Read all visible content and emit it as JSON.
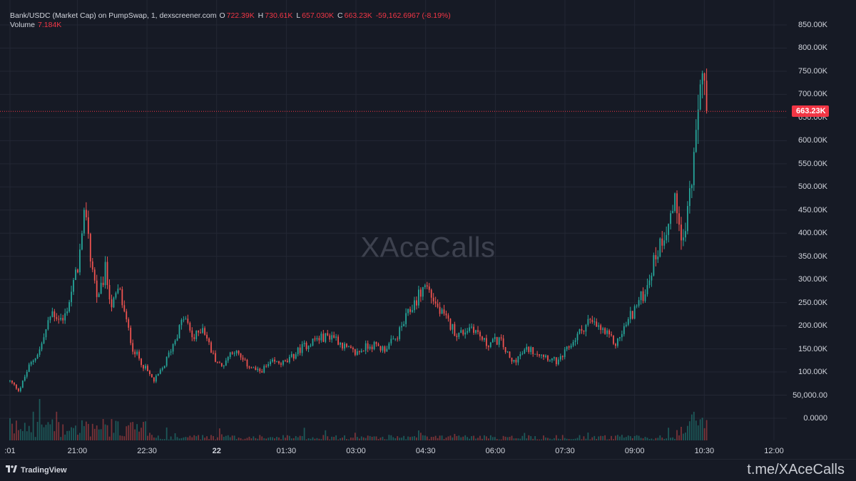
{
  "legend": {
    "symbol": "Bank/USDC (Market Cap) on PumpSwap, 1, dexscreener.com",
    "open_key": "O",
    "open": "722.39K",
    "high_key": "H",
    "high": "730.61K",
    "low_key": "L",
    "low": "657.030K",
    "close_key": "C",
    "close": "663.23K",
    "change": "-59,162.6967 (-8.19%)",
    "volume_key": "Volume",
    "volume": "7.184K"
  },
  "price_tag": "663.23K",
  "watermark": "XAceCalls",
  "brand": "TradingView",
  "corner_link": "t.me/XAceCalls",
  "colors": {
    "background": "#161a25",
    "grid": "#232734",
    "up": "#26a69a",
    "down": "#ef5350",
    "price_line": "#f23645"
  },
  "chart_data": {
    "type": "candlestick",
    "title": "Bank/USDC (Market Cap) on PumpSwap, 1, dexscreener.com",
    "y_ticks": [
      "850.00K",
      "800.00K",
      "750.00K",
      "700.00K",
      "650.00K",
      "600.00K",
      "550.00K",
      "500.00K",
      "450.00K",
      "400.00K",
      "350.00K",
      "300.00K",
      "250.00K",
      "200.00K",
      "150.00K",
      "100.00K",
      "50,000.00",
      "0.0000"
    ],
    "y_tick_values": [
      850000,
      800000,
      750000,
      700000,
      650000,
      600000,
      550000,
      500000,
      450000,
      400000,
      350000,
      300000,
      250000,
      200000,
      150000,
      100000,
      50000,
      0
    ],
    "x_ticks": [
      {
        "label": ":01",
        "hour": 19.55,
        "bold": false
      },
      {
        "label": "21:00",
        "hour": 21.0,
        "bold": false
      },
      {
        "label": "22:30",
        "hour": 22.5,
        "bold": false
      },
      {
        "label": "22",
        "hour": 24.0,
        "bold": true
      },
      {
        "label": "01:30",
        "hour": 25.5,
        "bold": false
      },
      {
        "label": "03:00",
        "hour": 27.0,
        "bold": false
      },
      {
        "label": "04:30",
        "hour": 28.5,
        "bold": false
      },
      {
        "label": "06:00",
        "hour": 30.0,
        "bold": false
      },
      {
        "label": "07:30",
        "hour": 31.5,
        "bold": false
      },
      {
        "label": "09:00",
        "hour": 33.0,
        "bold": false
      },
      {
        "label": "10:30",
        "hour": 34.5,
        "bold": false
      },
      {
        "label": "12:00",
        "hour": 36.0,
        "bold": false
      }
    ],
    "ylim": [
      -5000,
      870000
    ],
    "last_price": 663230,
    "anchors": [
      [
        19.55,
        80000
      ],
      [
        19.75,
        60000
      ],
      [
        19.95,
        110000
      ],
      [
        20.2,
        150000
      ],
      [
        20.45,
        230000
      ],
      [
        20.7,
        210000
      ],
      [
        20.95,
        300000
      ],
      [
        21.1,
        380000
      ],
      [
        21.18,
        460000
      ],
      [
        21.28,
        350000
      ],
      [
        21.45,
        250000
      ],
      [
        21.6,
        320000
      ],
      [
        21.75,
        240000
      ],
      [
        21.9,
        280000
      ],
      [
        22.05,
        210000
      ],
      [
        22.2,
        150000
      ],
      [
        22.45,
        110000
      ],
      [
        22.65,
        80000
      ],
      [
        22.85,
        110000
      ],
      [
        23.1,
        170000
      ],
      [
        23.3,
        220000
      ],
      [
        23.5,
        170000
      ],
      [
        23.7,
        200000
      ],
      [
        23.9,
        140000
      ],
      [
        24.1,
        110000
      ],
      [
        24.35,
        150000
      ],
      [
        24.6,
        120000
      ],
      [
        24.9,
        100000
      ],
      [
        25.2,
        120000
      ],
      [
        25.5,
        120000
      ],
      [
        25.8,
        150000
      ],
      [
        26.1,
        170000
      ],
      [
        26.5,
        180000
      ],
      [
        26.8,
        150000
      ],
      [
        27.0,
        140000
      ],
      [
        27.3,
        160000
      ],
      [
        27.6,
        150000
      ],
      [
        27.85,
        170000
      ],
      [
        28.2,
        240000
      ],
      [
        28.5,
        290000
      ],
      [
        28.8,
        230000
      ],
      [
        29.2,
        180000
      ],
      [
        29.5,
        200000
      ],
      [
        29.8,
        160000
      ],
      [
        30.1,
        170000
      ],
      [
        30.35,
        120000
      ],
      [
        30.7,
        150000
      ],
      [
        31.0,
        140000
      ],
      [
        31.35,
        120000
      ],
      [
        31.7,
        170000
      ],
      [
        32.0,
        210000
      ],
      [
        32.3,
        190000
      ],
      [
        32.6,
        160000
      ],
      [
        32.9,
        220000
      ],
      [
        33.2,
        270000
      ],
      [
        33.45,
        350000
      ],
      [
        33.7,
        420000
      ],
      [
        33.9,
        470000
      ],
      [
        34.05,
        380000
      ],
      [
        34.2,
        500000
      ],
      [
        34.3,
        560000
      ],
      [
        34.45,
        780000
      ],
      [
        34.55,
        663230
      ]
    ],
    "volume_scale_max": 50000
  }
}
